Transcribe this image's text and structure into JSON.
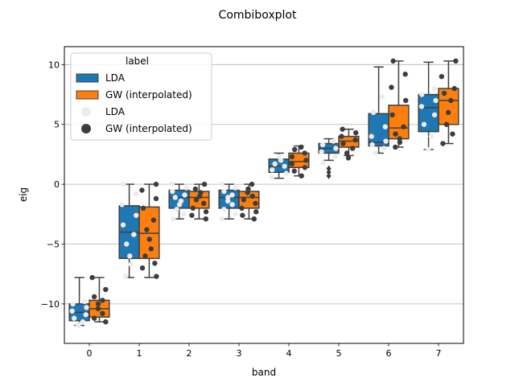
{
  "chart_data": {
    "type": "box",
    "title": "Combiboxplot",
    "xlabel": "band",
    "ylabel": "eig",
    "categories": [
      "0",
      "1",
      "2",
      "3",
      "4",
      "5",
      "6",
      "7"
    ],
    "ylim": [
      -13.3,
      11.5
    ],
    "yticks": [
      -10,
      -5,
      0,
      5,
      10
    ],
    "grid": "horizontal",
    "legend": {
      "title": "label",
      "placement": "top-left",
      "entries": [
        {
          "label": "LDA",
          "kind": "box",
          "color": "#1f77b4"
        },
        {
          "label": "GW (interpolated)",
          "kind": "box",
          "color": "#ff7f0e"
        },
        {
          "label": "LDA",
          "kind": "point",
          "color": "#ececec"
        },
        {
          "label": "GW (interpolated)",
          "kind": "point",
          "color": "#3d3d3d"
        }
      ]
    },
    "series": [
      {
        "name": "LDA",
        "color": "#1f77b4",
        "boxes": [
          {
            "whislo": -11.8,
            "q1": -11.4,
            "med": -10.7,
            "q3": -10.0,
            "whishi": -7.8
          },
          {
            "whislo": -7.8,
            "q1": -6.2,
            "med": -4.0,
            "q3": -1.8,
            "whishi": 0.0
          },
          {
            "whislo": -2.9,
            "q1": -2.0,
            "med": -1.1,
            "q3": -0.5,
            "whishi": 0.0
          },
          {
            "whislo": -2.9,
            "q1": -2.0,
            "med": -1.1,
            "q3": -0.5,
            "whishi": 0.0
          },
          {
            "whislo": 0.5,
            "q1": 1.0,
            "med": 1.5,
            "q3": 2.1,
            "whishi": 2.6
          },
          {
            "whislo": 2.0,
            "q1": 2.6,
            "med": 3.0,
            "q3": 3.4,
            "whishi": 3.8
          },
          {
            "whislo": 2.6,
            "q1": 3.2,
            "med": 3.5,
            "q3": 5.9,
            "whishi": 9.8
          },
          {
            "whislo": 2.9,
            "q1": 4.4,
            "med": 6.4,
            "q3": 7.5,
            "whishi": 10.2
          }
        ],
        "outliers": [
          [],
          [],
          [],
          [],
          [],
          [
            0.7,
            1.0,
            1.3
          ],
          [],
          []
        ]
      },
      {
        "name": "GW (interpolated)",
        "color": "#ff7f0e",
        "boxes": [
          {
            "whislo": -11.5,
            "q1": -11.1,
            "med": -10.4,
            "q3": -9.7,
            "whishi": -7.8
          },
          {
            "whislo": -7.8,
            "q1": -6.2,
            "med": -4.1,
            "q3": -1.9,
            "whishi": 0.0
          },
          {
            "whislo": -2.9,
            "q1": -2.0,
            "med": -1.1,
            "q3": -0.6,
            "whishi": 0.0
          },
          {
            "whislo": -2.9,
            "q1": -2.0,
            "med": -1.1,
            "q3": -0.6,
            "whishi": 0.0
          },
          {
            "whislo": 0.7,
            "q1": 1.4,
            "med": 1.9,
            "q3": 2.6,
            "whishi": 3.2
          },
          {
            "whislo": 2.4,
            "q1": 3.1,
            "med": 3.6,
            "q3": 4.0,
            "whishi": 4.6
          },
          {
            "whislo": 3.1,
            "q1": 3.8,
            "med": 4.7,
            "q3": 6.6,
            "whishi": 10.3
          },
          {
            "whislo": 3.4,
            "q1": 5.0,
            "med": 7.0,
            "q3": 8.0,
            "whishi": 10.3
          }
        ],
        "outliers": [
          [],
          [],
          [],
          [],
          [],
          [],
          [],
          []
        ]
      }
    ],
    "strip_points": [
      {
        "name": "LDA",
        "color": "#ececec",
        "values": [
          [
            -11.8,
            -11.7,
            -11.5,
            -11.2,
            -10.9,
            -10.6,
            -10.3,
            -10.0,
            -9.8
          ],
          [
            -7.7,
            -6.7,
            -6.0,
            -5.0,
            -4.2,
            -3.4,
            -2.6,
            -1.7,
            -0.8,
            0.0
          ],
          [
            -2.9,
            -2.5,
            -2.1,
            -1.7,
            -1.4,
            -1.1,
            -0.9,
            -0.6,
            -0.3,
            0.0
          ],
          [
            -2.9,
            -2.5,
            -2.1,
            -1.7,
            -1.4,
            -1.1,
            -0.9,
            -0.6,
            -0.3,
            0.0
          ],
          [
            0.6,
            0.9,
            1.2,
            1.5,
            1.7,
            2.0,
            2.3
          ],
          [
            1.8,
            2.3,
            2.7,
            3.0,
            3.3,
            3.6
          ],
          [
            2.6,
            3.0,
            3.3,
            3.6,
            4.0,
            4.8,
            6.0,
            7.3
          ],
          [
            2.9,
            4.0,
            5.0,
            5.8,
            6.5,
            7.0,
            7.5,
            8.0
          ]
        ]
      },
      {
        "name": "GW (interpolated)",
        "color": "#3d3d3d",
        "values": [
          [
            -11.5,
            -11.2,
            -10.8,
            -10.4,
            -10.0,
            -9.7,
            -9.4,
            -8.8,
            -7.8
          ],
          [
            -7.7,
            -7.0,
            -6.6,
            -6.0,
            -5.4,
            -4.6,
            -3.8,
            -3.0,
            -2.0,
            -1.2,
            -0.5,
            0.0
          ],
          [
            -2.9,
            -2.6,
            -2.3,
            -2.0,
            -1.6,
            -1.3,
            -1.0,
            -0.7,
            -0.4,
            0.0
          ],
          [
            -2.9,
            -2.6,
            -2.3,
            -2.0,
            -1.6,
            -1.3,
            -1.0,
            -0.7,
            -0.4,
            0.0
          ],
          [
            0.7,
            1.1,
            1.4,
            1.7,
            2.0,
            2.3,
            2.6,
            2.9,
            3.1
          ],
          [
            2.2,
            2.6,
            3.0,
            3.4,
            3.7,
            4.0,
            4.3,
            4.6
          ],
          [
            3.1,
            3.5,
            3.8,
            4.2,
            4.8,
            5.8,
            7.0,
            8.1,
            9.2,
            10.3
          ],
          [
            3.4,
            4.2,
            5.0,
            6.0,
            7.0,
            7.6,
            8.0,
            9.0,
            10.3
          ]
        ]
      }
    ]
  }
}
